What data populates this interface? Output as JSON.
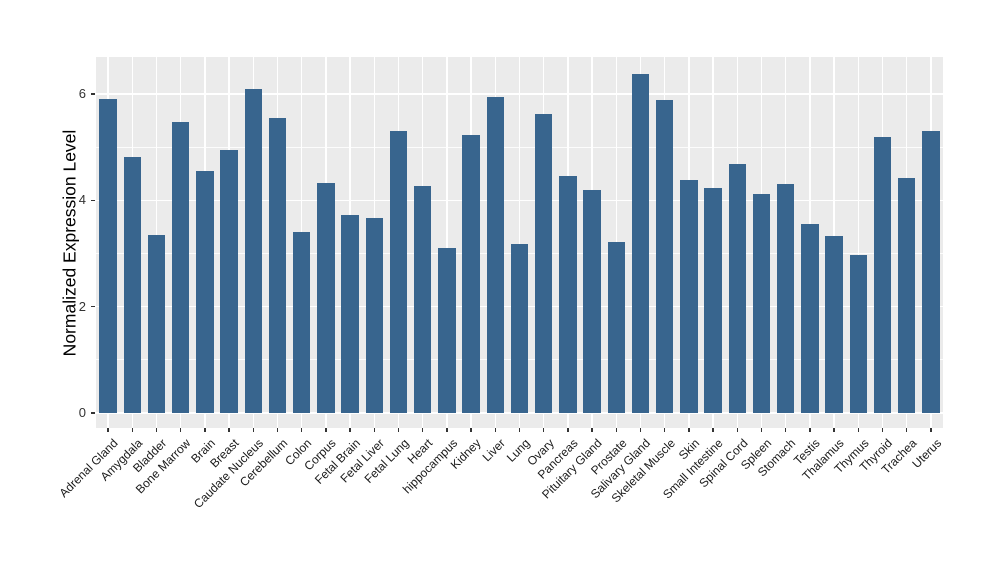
{
  "chart_data": {
    "type": "bar",
    "title": "",
    "xlabel": "",
    "ylabel": "Normalized Expression Level",
    "categories": [
      "Adrenal Gland",
      "Amygdala",
      "Bladder",
      "Bone Marrow",
      "Brain",
      "Breast",
      "Caudate Nucleus",
      "Cerebellum",
      "Colon",
      "Corpus",
      "Fetal Brain",
      "Fetal Liver",
      "Fetal Lung",
      "Heart",
      "hippocampus",
      "Kidney",
      "Liver",
      "Lung",
      "Ovary",
      "Pancreas",
      "Pituitary Gland",
      "Prostate",
      "Salivary Gland",
      "Skeletal Muscle",
      "Skin",
      "Small Intestine",
      "Spinal Cord",
      "Spleen",
      "Stomach",
      "Testis",
      "Thalamus",
      "Thymus",
      "Thyroid",
      "Trachea",
      "Uterus"
    ],
    "values": [
      5.9,
      4.81,
      3.35,
      5.47,
      4.56,
      4.95,
      6.09,
      5.54,
      3.41,
      4.32,
      3.73,
      3.66,
      5.3,
      4.27,
      3.11,
      5.22,
      5.95,
      3.18,
      5.63,
      4.46,
      4.2,
      3.21,
      6.38,
      5.89,
      4.38,
      4.24,
      4.68,
      4.12,
      4.31,
      3.55,
      3.32,
      2.97,
      5.2,
      4.42,
      5.31
    ],
    "ylim": [
      0,
      6.7
    ],
    "yticks": [
      0,
      2,
      4,
      6
    ],
    "yminorticks": [
      1,
      3,
      5
    ],
    "grid": "on",
    "legend": "none",
    "bar_color": "#38658E",
    "panel_background": "#EBEBEB",
    "grid_color": "#FFFFFF",
    "tick_color": "#333333",
    "axis_text_color": "#333333",
    "x_label_color": "#1a1a1a"
  }
}
